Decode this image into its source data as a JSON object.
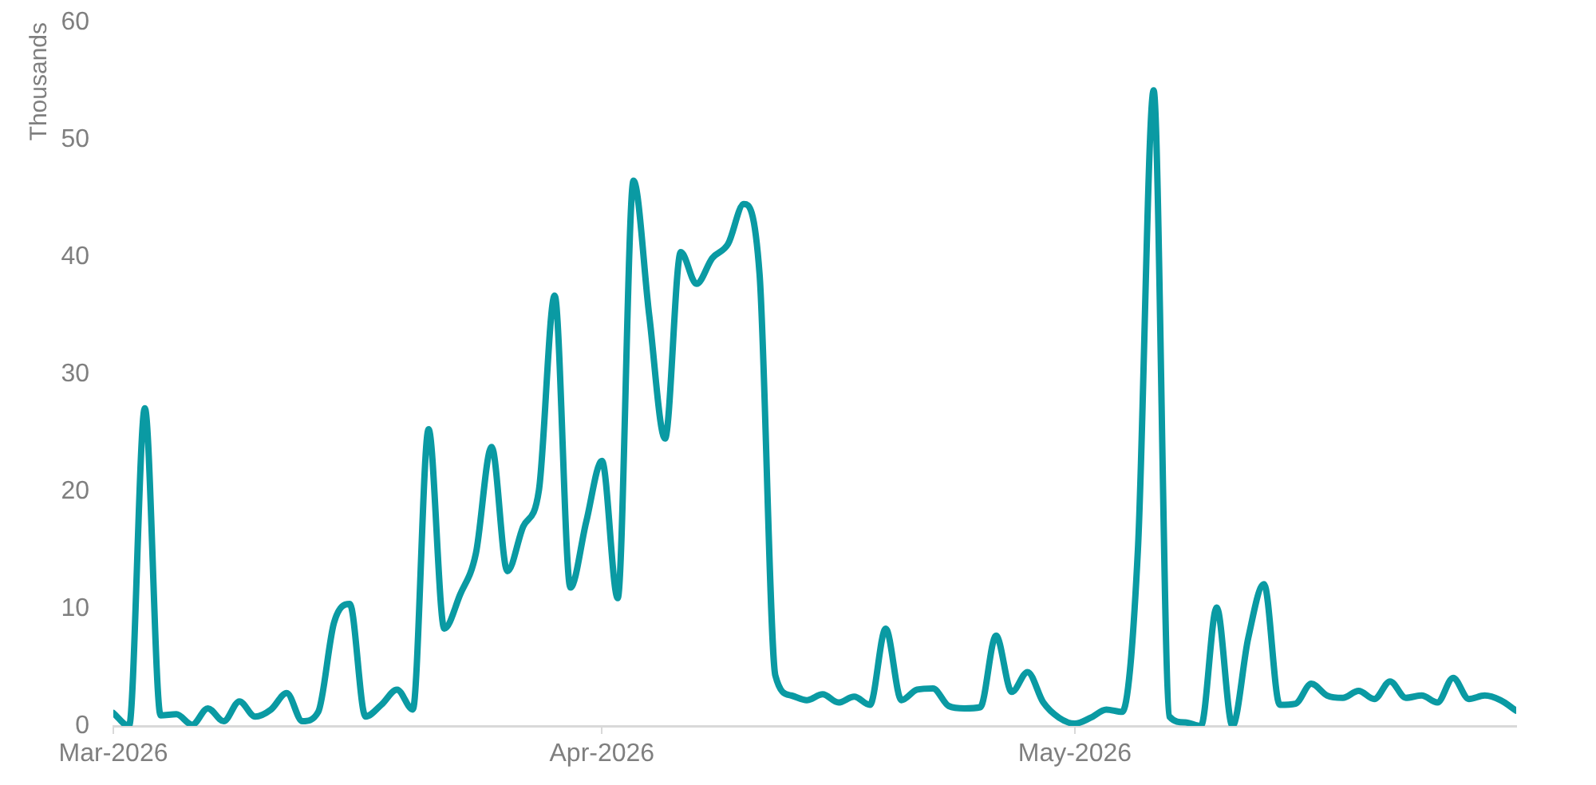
{
  "chart_data": {
    "type": "line",
    "ylabel": "Thousands",
    "color": "#0a9aa3",
    "x": [
      "2026-03-01",
      "2026-03-02",
      "2026-03-03",
      "2026-03-04",
      "2026-03-05",
      "2026-03-06",
      "2026-03-07",
      "2026-03-08",
      "2026-03-09",
      "2026-03-10",
      "2026-03-11",
      "2026-03-12",
      "2026-03-13",
      "2026-03-14",
      "2026-03-15",
      "2026-03-16",
      "2026-03-17",
      "2026-03-18",
      "2026-03-19",
      "2026-03-20",
      "2026-03-21",
      "2026-03-22",
      "2026-03-23",
      "2026-03-24",
      "2026-03-25",
      "2026-03-26",
      "2026-03-27",
      "2026-03-28",
      "2026-03-29",
      "2026-03-30",
      "2026-03-31",
      "2026-04-01",
      "2026-04-02",
      "2026-04-03",
      "2026-04-04",
      "2026-04-05",
      "2026-04-06",
      "2026-04-07",
      "2026-04-08",
      "2026-04-09",
      "2026-04-10",
      "2026-04-11",
      "2026-04-12",
      "2026-04-13",
      "2026-04-14",
      "2026-04-15",
      "2026-04-16",
      "2026-04-17",
      "2026-04-18",
      "2026-04-19",
      "2026-04-20",
      "2026-04-21",
      "2026-04-22",
      "2026-04-23",
      "2026-04-24",
      "2026-04-25",
      "2026-04-26",
      "2026-04-27",
      "2026-04-28",
      "2026-04-29",
      "2026-04-30",
      "2026-05-01",
      "2026-05-02",
      "2026-05-03",
      "2026-05-04",
      "2026-05-05",
      "2026-05-06",
      "2026-05-07",
      "2026-05-08",
      "2026-05-09",
      "2026-05-10",
      "2026-05-11",
      "2026-05-12",
      "2026-05-13",
      "2026-05-14",
      "2026-05-15",
      "2026-05-16",
      "2026-05-17",
      "2026-05-18",
      "2026-05-19",
      "2026-05-20",
      "2026-05-21",
      "2026-05-22",
      "2026-05-23",
      "2026-05-24",
      "2026-05-25",
      "2026-05-26",
      "2026-05-27",
      "2026-05-28",
      "2026-05-29"
    ],
    "values": [
      1.1,
      0,
      27.1,
      0.9,
      1.0,
      0.1,
      1.5,
      0.4,
      2.1,
      0.8,
      1.4,
      2.8,
      0.4,
      1.2,
      8.8,
      10.4,
      0.8,
      1.8,
      3.1,
      1.4,
      25.3,
      8.3,
      11.2,
      14.7,
      23.8,
      13.2,
      17.0,
      20.1,
      36.7,
      11.8,
      17.4,
      22.6,
      10.9,
      46.5,
      35.0,
      24.5,
      40.4,
      37.7,
      39.9,
      41.1,
      44.5,
      38.5,
      4.3,
      2.6,
      2.2,
      2.7,
      2.0,
      2.5,
      1.8,
      8.3,
      2.2,
      3.1,
      3.2,
      1.7,
      1.5,
      1.6,
      7.7,
      2.9,
      4.6,
      2.0,
      0.7,
      0.2,
      0.7,
      1.4,
      1.2,
      15,
      54.2,
      0.8,
      0.3,
      0,
      10.1,
      0,
      7.5,
      12.1,
      1.8,
      1.9,
      3.6,
      2.6,
      2.4,
      3.0,
      2.3,
      3.8,
      2.4,
      2.6,
      2.0,
      4.1,
      2.3,
      2.6,
      2.2,
      1.3
    ],
    "xlim": [
      "2026-03-01",
      "2026-05-29"
    ],
    "xticks": [
      {
        "value": "2026-03-01",
        "label": "Mar-2026"
      },
      {
        "value": "2026-04-01",
        "label": "Apr-2026"
      },
      {
        "value": "2026-05-01",
        "label": "May-2026"
      }
    ],
    "ylim": [
      0,
      60
    ],
    "yticks": [
      0,
      10,
      20,
      30,
      40,
      50,
      60
    ]
  }
}
